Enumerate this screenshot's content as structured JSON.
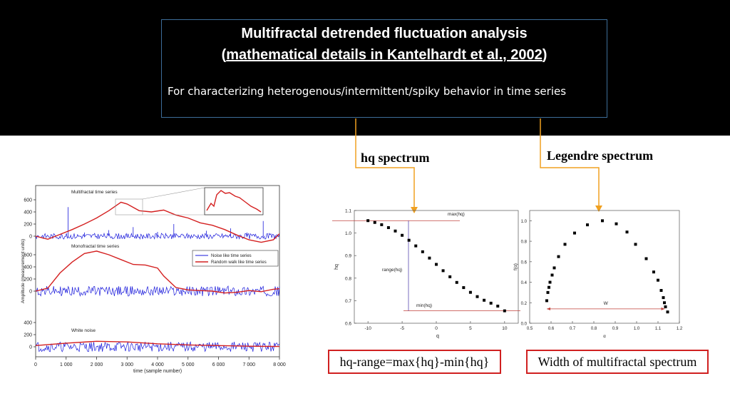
{
  "header": {
    "title_line1": "Multifractal detrended fluctuation analysis",
    "title_line2_open": "(",
    "title_line2_link": "mathematical details in Kantelhardt et al., 2002",
    "title_line2_close": ")",
    "description": "For characterizing heterogenous/intermittent/spiky behavior in time series"
  },
  "labels": {
    "hq_spectrum": "hq spectrum",
    "legendre_spectrum": "Legendre spectrum",
    "hq_range_formula": "hq-range=max{hq}-min{hq}",
    "width_caption": "Width of multifractal spectrum"
  },
  "colors": {
    "arrow": "#f0a020",
    "box_border": "#d02020",
    "title_border": "#3d6d99",
    "noise_series": "#1a1adb",
    "random_walk_series": "#d42020"
  },
  "chart_data": [
    {
      "type": "line",
      "panels": [
        {
          "label": "Multifractal time series",
          "yticks": [
            "600",
            "400",
            "200",
            "0"
          ]
        },
        {
          "label": "Monofractal time series",
          "yticks": [
            "600",
            "400",
            "200",
            "0"
          ]
        },
        {
          "label": "White noise",
          "yticks": [
            "400",
            "200",
            "0"
          ]
        }
      ],
      "ylabel": "Amplitude (measurement units)",
      "xlabel": "time (sample number)",
      "xticks": [
        "0",
        "1 000",
        "2 000",
        "3 000",
        "4 000",
        "5 000",
        "6 000",
        "7 000",
        "8 000"
      ],
      "xlim": [
        0,
        8000
      ],
      "legend": [
        "Noise like time series",
        "Random walk like time series"
      ],
      "legend_position": "middle-right",
      "series": [
        {
          "name": "Noise like time series",
          "panel": "Multifractal time series",
          "values": [
            0,
            20,
            10,
            -30,
            480,
            5,
            60,
            -20,
            40,
            100,
            20,
            -40,
            150,
            10,
            30,
            70,
            -10,
            200,
            20,
            50,
            10,
            90,
            30,
            0,
            130,
            20,
            60,
            10,
            250,
            40,
            0
          ]
        },
        {
          "name": "Random walk like time series",
          "panel": "Multifractal time series",
          "x": [
            0,
            400,
            800,
            1200,
            1600,
            2000,
            2400,
            2800,
            3000,
            3400,
            3800,
            4200,
            4600,
            5000,
            5400,
            5800,
            6200,
            6600,
            7000,
            7400,
            7800,
            8000
          ],
          "values": [
            0,
            -50,
            30,
            110,
            200,
            300,
            420,
            560,
            530,
            420,
            400,
            430,
            350,
            300,
            220,
            180,
            110,
            20,
            -60,
            -100,
            -60,
            40
          ]
        },
        {
          "name": "Noise like time series",
          "panel": "Monofractal time series",
          "values": [
            0,
            40,
            -40,
            50,
            -30,
            30,
            -50,
            40,
            -20,
            50,
            -40,
            30
          ]
        },
        {
          "name": "Random walk like time series",
          "panel": "Monofractal time series",
          "x": [
            0,
            400,
            800,
            1200,
            1600,
            2000,
            2400,
            2800,
            3200,
            3600,
            4000,
            4200,
            4600,
            5000,
            5400,
            5800,
            6200,
            6600,
            7000,
            7400,
            7800,
            8000
          ],
          "values": [
            0,
            50,
            300,
            480,
            620,
            660,
            600,
            520,
            440,
            430,
            380,
            250,
            60,
            20,
            10,
            0,
            -30,
            -20,
            10,
            -10,
            30,
            40
          ]
        },
        {
          "name": "Noise like time series",
          "panel": "White noise",
          "values": [
            0,
            40,
            -40,
            50,
            -30,
            30,
            -50,
            40,
            -20,
            50,
            -40,
            30
          ]
        },
        {
          "name": "Random walk like time series",
          "panel": "White noise",
          "x": [
            0,
            1000,
            2000,
            3000,
            4000,
            5000,
            6000,
            7000,
            8000
          ],
          "values": [
            20,
            60,
            90,
            80,
            50,
            30,
            20,
            10,
            5
          ]
        }
      ]
    },
    {
      "type": "scatter",
      "xlabel": "q",
      "ylabel": "hq",
      "xlim": [
        -12,
        12
      ],
      "ylim": [
        0.6,
        1.1
      ],
      "xticks": [
        "-10",
        "-5",
        "0",
        "5",
        "10"
      ],
      "yticks": [
        "0.6",
        "0.7",
        "0.8",
        "0.9",
        "1.0",
        "1.1"
      ],
      "x": [
        -10,
        -9,
        -8,
        -7,
        -6,
        -5,
        -4,
        -3,
        -2,
        -1,
        0,
        1,
        2,
        3,
        4,
        5,
        6,
        7,
        8,
        9,
        10
      ],
      "values": [
        1.055,
        1.047,
        1.037,
        1.024,
        1.009,
        0.99,
        0.968,
        0.943,
        0.917,
        0.889,
        0.861,
        0.833,
        0.806,
        0.781,
        0.758,
        0.737,
        0.718,
        0.702,
        0.689,
        0.676,
        0.655
      ],
      "annotations": [
        "max(hq)",
        "range(hq)",
        "min(hq)"
      ]
    },
    {
      "type": "scatter",
      "xlabel": "α",
      "ylabel": "f(α)",
      "xlim": [
        0.5,
        1.2
      ],
      "ylim": [
        0.0,
        1.1
      ],
      "xticks": [
        "0.5",
        "0.6",
        "0.7",
        "0.8",
        "0.9",
        "1.0",
        "1.1",
        "1.2"
      ],
      "yticks": [
        "0.0",
        "0.2",
        "0.4",
        "0.6",
        "0.8",
        "1.0"
      ],
      "x": [
        0.58,
        0.585,
        0.59,
        0.595,
        0.605,
        0.615,
        0.635,
        0.665,
        0.71,
        0.77,
        0.84,
        0.905,
        0.955,
        0.995,
        1.045,
        1.08,
        1.1,
        1.115,
        1.125,
        1.13,
        1.135,
        1.145
      ],
      "values": [
        0.22,
        0.3,
        0.35,
        0.4,
        0.47,
        0.54,
        0.65,
        0.77,
        0.88,
        0.96,
        1.0,
        0.97,
        0.89,
        0.77,
        0.63,
        0.5,
        0.42,
        0.32,
        0.25,
        0.2,
        0.16,
        0.11
      ],
      "annotations": [
        "W"
      ]
    }
  ]
}
